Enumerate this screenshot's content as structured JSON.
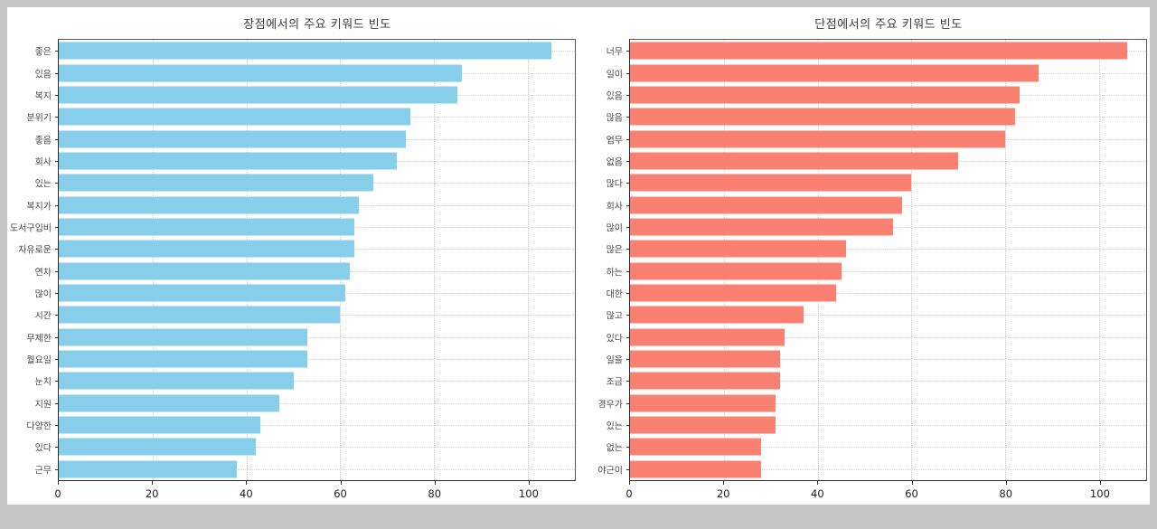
{
  "page": {
    "background_color": "#c6c6c6",
    "panel_color": "#ffffff"
  },
  "chart_data": [
    {
      "type": "bar",
      "orientation": "horizontal",
      "title": "장점에서의 주요 키워드 빈도",
      "bar_color": "#87CEEB",
      "grid": "dotted",
      "legend": "none",
      "xlim": [
        0,
        110
      ],
      "xticks": [
        0,
        20,
        40,
        60,
        80,
        100
      ],
      "categories": [
        "좋은",
        "있음",
        "복지",
        "분위기",
        "좋음",
        "회사",
        "있는",
        "복지가",
        "도서구입비",
        "자유로운",
        "연차",
        "많이",
        "시간",
        "무제한",
        "월요일",
        "눈치",
        "지원",
        "다양한",
        "있다",
        "근무"
      ],
      "values": [
        105,
        86,
        85,
        75,
        74,
        72,
        67,
        64,
        63,
        63,
        62,
        61,
        60,
        53,
        53,
        50,
        47,
        43,
        42,
        38
      ]
    },
    {
      "type": "bar",
      "orientation": "horizontal",
      "title": "단점에서의 주요 키워드 빈도",
      "bar_color": "#FA8072",
      "grid": "dotted",
      "legend": "none",
      "xlim": [
        0,
        110
      ],
      "xticks": [
        0,
        20,
        40,
        60,
        80,
        100
      ],
      "categories": [
        "너무",
        "일이",
        "있음",
        "많음",
        "업무",
        "없음",
        "많다",
        "회사",
        "많이",
        "많은",
        "하는",
        "대한",
        "많고",
        "있다",
        "일을",
        "조금",
        "경우가",
        "있는",
        "없는",
        "야근이"
      ],
      "values": [
        106,
        87,
        83,
        82,
        80,
        70,
        60,
        58,
        56,
        46,
        45,
        44,
        37,
        33,
        32,
        32,
        31,
        31,
        28,
        28
      ]
    }
  ]
}
